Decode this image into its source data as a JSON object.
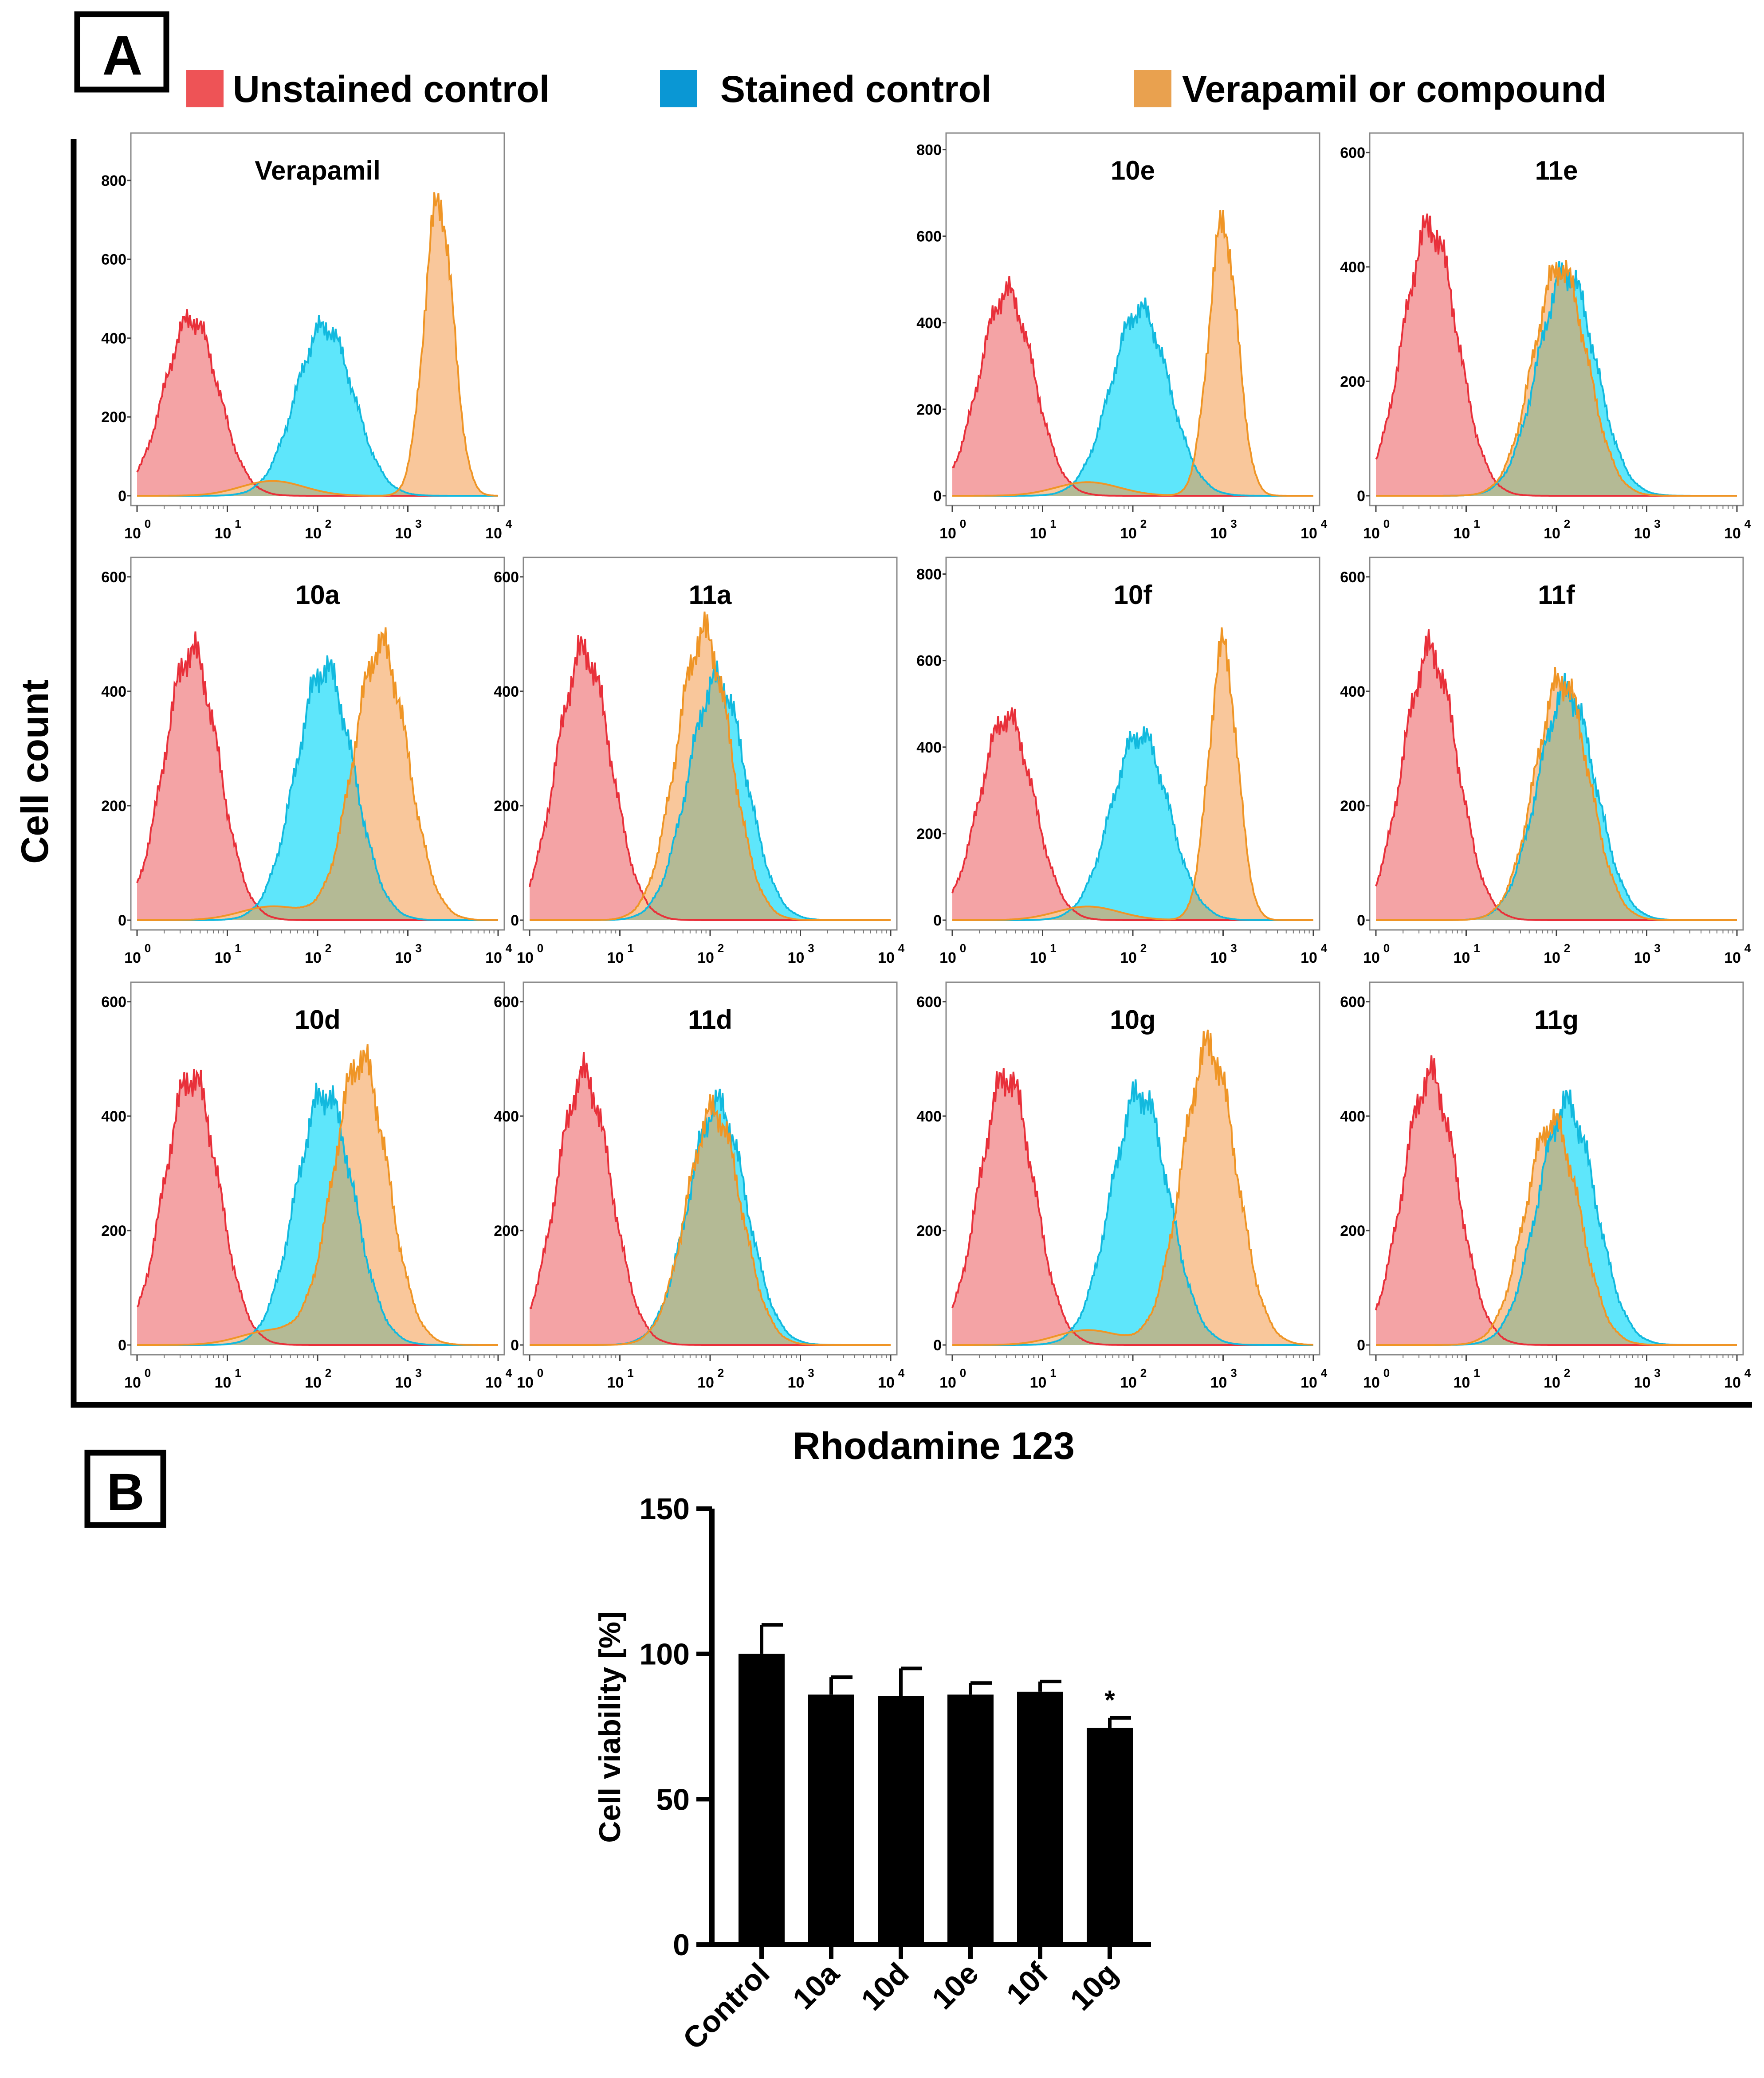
{
  "colors": {
    "unstained_fill": "#f4a3a5",
    "unstained_line": "#e8303a",
    "stained_fill": "#5ee6fb",
    "stained_line": "#12b9de",
    "compound_fill": "#f9c79b",
    "compound_line": "#ef9526",
    "overlap_fill": "#b4ba95",
    "legend_unstained": "#ee5356",
    "legend_stained": "#0a97d4",
    "legend_compound": "#e9a14f"
  },
  "panel_a": {
    "label": "A",
    "legend": [
      "Unstained control",
      "Stained control",
      "Verapamil or compound"
    ],
    "y_axis_title": "Cell count",
    "x_axis_title": "Rhodamine 123"
  },
  "panel_b": {
    "label": "B"
  },
  "chart_data": [
    {
      "type": "area",
      "title": "Verapamil",
      "x_scale": "log",
      "xlim": [
        1,
        10000
      ],
      "ylim": [
        0,
        900
      ],
      "x_ticks": [
        "10",
        "10",
        "10",
        "10",
        "10"
      ],
      "x_tick_exponents": [
        "0",
        "1",
        "2",
        "3",
        "4"
      ],
      "y_ticks": [
        "0",
        "200",
        "400",
        "600",
        "800"
      ],
      "series": [
        {
          "name": "Unstained control",
          "peak_x": 4,
          "peak_count": 450
        },
        {
          "name": "Stained control",
          "peak_x": 120,
          "peak_count": 430
        },
        {
          "name": "Verapamil or compound",
          "peak_x": 2200,
          "peak_count": 750
        }
      ]
    },
    {
      "type": "area",
      "title": "10e",
      "x_scale": "log",
      "xlim": [
        1,
        10000
      ],
      "ylim": [
        0,
        820
      ],
      "x_ticks": [
        "10",
        "10",
        "10",
        "10",
        "10"
      ],
      "x_tick_exponents": [
        "0",
        "1",
        "2",
        "3",
        "4"
      ],
      "y_ticks": [
        "0",
        "200",
        "400",
        "600",
        "800"
      ],
      "series": [
        {
          "name": "Unstained control",
          "peak_x": 4,
          "peak_count": 470
        },
        {
          "name": "Stained control",
          "peak_x": 120,
          "peak_count": 430
        },
        {
          "name": "Verapamil or compound",
          "peak_x": 1000,
          "peak_count": 630
        }
      ]
    },
    {
      "type": "area",
      "title": "11e",
      "x_scale": "log",
      "xlim": [
        1,
        10000
      ],
      "ylim": [
        0,
        620
      ],
      "x_ticks": [
        "10",
        "10",
        "10",
        "10",
        "10"
      ],
      "x_tick_exponents": [
        "0",
        "1",
        "2",
        "3",
        "4"
      ],
      "y_ticks": [
        "0",
        "200",
        "400",
        "600"
      ],
      "series": [
        {
          "name": "Unstained control",
          "peak_x": 4,
          "peak_count": 470
        },
        {
          "name": "Stained control",
          "peak_x": 130,
          "peak_count": 390
        },
        {
          "name": "Verapamil or compound",
          "peak_x": 110,
          "peak_count": 400
        }
      ]
    },
    {
      "type": "area",
      "title": "10a",
      "x_scale": "log",
      "xlim": [
        1,
        10000
      ],
      "ylim": [
        0,
        620
      ],
      "x_ticks": [
        "10",
        "10",
        "10",
        "10",
        "10"
      ],
      "x_tick_exponents": [
        "0",
        "1",
        "2",
        "3",
        "4"
      ],
      "y_ticks": [
        "0",
        "200",
        "400",
        "600"
      ],
      "series": [
        {
          "name": "Unstained control",
          "peak_x": 4,
          "peak_count": 470
        },
        {
          "name": "Stained control",
          "peak_x": 120,
          "peak_count": 440
        },
        {
          "name": "Verapamil or compound",
          "peak_x": 500,
          "peak_count": 480
        }
      ]
    },
    {
      "type": "area",
      "title": "11a",
      "x_scale": "log",
      "xlim": [
        1,
        10000
      ],
      "ylim": [
        0,
        620
      ],
      "x_ticks": [
        "10",
        "10",
        "10",
        "10",
        "10"
      ],
      "x_tick_exponents": [
        "0",
        "1",
        "2",
        "3",
        "4"
      ],
      "y_ticks": [
        "0",
        "200",
        "400",
        "600"
      ],
      "series": [
        {
          "name": "Unstained control",
          "peak_x": 4,
          "peak_count": 470
        },
        {
          "name": "Stained control",
          "peak_x": 120,
          "peak_count": 420
        },
        {
          "name": "Verapamil or compound",
          "peak_x": 85,
          "peak_count": 500
        }
      ]
    },
    {
      "type": "area",
      "title": "10f",
      "x_scale": "log",
      "xlim": [
        1,
        10000
      ],
      "ylim": [
        0,
        820
      ],
      "x_ticks": [
        "10",
        "10",
        "10",
        "10",
        "10"
      ],
      "x_tick_exponents": [
        "0",
        "1",
        "2",
        "3",
        "4"
      ],
      "y_ticks": [
        "0",
        "200",
        "400",
        "600",
        "800"
      ],
      "series": [
        {
          "name": "Unstained control",
          "peak_x": 4,
          "peak_count": 470
        },
        {
          "name": "Stained control",
          "peak_x": 120,
          "peak_count": 430
        },
        {
          "name": "Verapamil or compound",
          "peak_x": 1000,
          "peak_count": 630
        }
      ]
    },
    {
      "type": "area",
      "title": "11f",
      "x_scale": "log",
      "xlim": [
        1,
        10000
      ],
      "ylim": [
        0,
        620
      ],
      "x_ticks": [
        "10",
        "10",
        "10",
        "10",
        "10"
      ],
      "x_tick_exponents": [
        "0",
        "1",
        "2",
        "3",
        "4"
      ],
      "y_ticks": [
        "0",
        "200",
        "400",
        "600"
      ],
      "series": [
        {
          "name": "Unstained control",
          "peak_x": 4,
          "peak_count": 470
        },
        {
          "name": "Stained control",
          "peak_x": 130,
          "peak_count": 400
        },
        {
          "name": "Verapamil or compound",
          "peak_x": 115,
          "peak_count": 420
        }
      ]
    },
    {
      "type": "area",
      "title": "10d",
      "x_scale": "log",
      "xlim": [
        1,
        10000
      ],
      "ylim": [
        0,
        620
      ],
      "x_ticks": [
        "10",
        "10",
        "10",
        "10",
        "10"
      ],
      "x_tick_exponents": [
        "0",
        "1",
        "2",
        "3",
        "4"
      ],
      "y_ticks": [
        "0",
        "200",
        "400",
        "600"
      ],
      "series": [
        {
          "name": "Unstained control",
          "peak_x": 4,
          "peak_count": 470
        },
        {
          "name": "Stained control",
          "peak_x": 120,
          "peak_count": 440
        },
        {
          "name": "Verapamil or compound",
          "peak_x": 300,
          "peak_count": 500
        }
      ]
    },
    {
      "type": "area",
      "title": "11d",
      "x_scale": "log",
      "xlim": [
        1,
        10000
      ],
      "ylim": [
        0,
        620
      ],
      "x_ticks": [
        "10",
        "10",
        "10",
        "10",
        "10"
      ],
      "x_tick_exponents": [
        "0",
        "1",
        "2",
        "3",
        "4"
      ],
      "y_ticks": [
        "0",
        "200",
        "400",
        "600"
      ],
      "series": [
        {
          "name": "Unstained control",
          "peak_x": 4,
          "peak_count": 470
        },
        {
          "name": "Stained control",
          "peak_x": 120,
          "peak_count": 420
        },
        {
          "name": "Verapamil or compound",
          "peak_x": 110,
          "peak_count": 410
        }
      ]
    },
    {
      "type": "area",
      "title": "10g",
      "x_scale": "log",
      "xlim": [
        1,
        10000
      ],
      "ylim": [
        0,
        620
      ],
      "x_ticks": [
        "10",
        "10",
        "10",
        "10",
        "10"
      ],
      "x_tick_exponents": [
        "0",
        "1",
        "2",
        "3",
        "4"
      ],
      "y_ticks": [
        "0",
        "200",
        "400",
        "600"
      ],
      "series": [
        {
          "name": "Unstained control",
          "peak_x": 4,
          "peak_count": 470
        },
        {
          "name": "Stained control",
          "peak_x": 120,
          "peak_count": 440
        },
        {
          "name": "Verapamil or compound",
          "peak_x": 700,
          "peak_count": 520
        }
      ]
    },
    {
      "type": "area",
      "title": "11g",
      "x_scale": "log",
      "xlim": [
        1,
        10000
      ],
      "ylim": [
        0,
        620
      ],
      "x_ticks": [
        "10",
        "10",
        "10",
        "10",
        "10"
      ],
      "x_tick_exponents": [
        "0",
        "1",
        "2",
        "3",
        "4"
      ],
      "y_ticks": [
        "0",
        "200",
        "400",
        "600"
      ],
      "series": [
        {
          "name": "Unstained control",
          "peak_x": 4,
          "peak_count": 470
        },
        {
          "name": "Stained control",
          "peak_x": 130,
          "peak_count": 420
        },
        {
          "name": "Verapamil or compound",
          "peak_x": 90,
          "peak_count": 390
        }
      ]
    },
    {
      "type": "bar",
      "categories": [
        "Control",
        "10a",
        "10d",
        "10e",
        "10f",
        "10g"
      ],
      "values": [
        100,
        86,
        85.5,
        86,
        87,
        74.5
      ],
      "errors": [
        10,
        6,
        9.5,
        4,
        3.5,
        3.5
      ],
      "annotations": [
        "",
        "",
        "",
        "",
        "",
        "*"
      ],
      "ylabel": "Cell viability [%]",
      "xlabel": "",
      "ylim": [
        0,
        150
      ],
      "y_ticks": [
        "0",
        "50",
        "100",
        "150"
      ]
    }
  ]
}
